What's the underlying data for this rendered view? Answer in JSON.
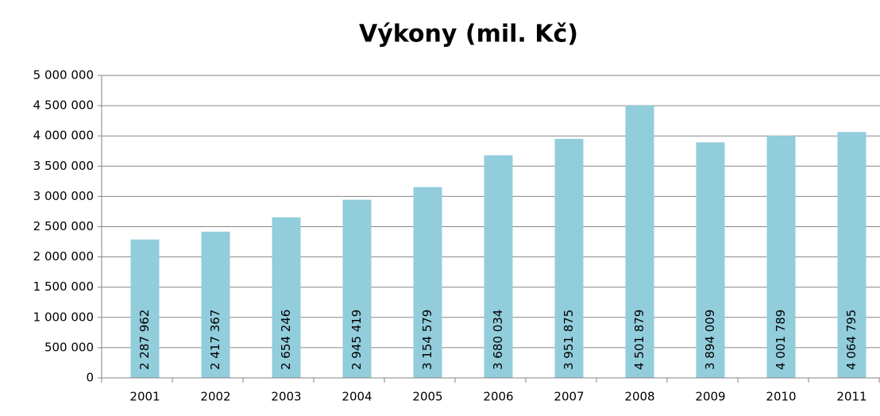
{
  "chart_data": {
    "type": "bar",
    "title": "Výkony (mil. Kč)",
    "categories": [
      "2001",
      "2002",
      "2003",
      "2004",
      "2005",
      "2006",
      "2007",
      "2008",
      "2009",
      "2010",
      "2011"
    ],
    "values": [
      2287962,
      2417367,
      2654246,
      2945419,
      3154579,
      3680034,
      3951875,
      4501879,
      3894009,
      4001789,
      4064795
    ],
    "value_labels": [
      "2 287 962",
      "2 417 367",
      "2 654 246",
      "2 945 419",
      "3 154 579",
      "3 680 034",
      "3 951 875",
      "4 501 879",
      "3 894 009",
      "4 001 789",
      "4 064 795"
    ],
    "color": "#92cddc",
    "ylim": [
      0,
      5000000
    ],
    "yticks": [
      0,
      {
        "value": 500000,
        "label": "500 000"
      },
      {
        "value": 1000000,
        "label": "1 000 000"
      },
      {
        "value": 1500000,
        "label": "1 500 000"
      },
      {
        "value": 2000000,
        "label": "2 000 000"
      },
      {
        "value": 2500000,
        "label": "2 500 000"
      },
      {
        "value": 3000000,
        "label": "3 000 000"
      },
      {
        "value": 3500000,
        "label": "3 500 000"
      },
      {
        "value": 4000000,
        "label": "4 000 000"
      },
      {
        "value": 4500000,
        "label": "4 500 000"
      },
      {
        "value": 5000000,
        "label": "5 000 000"
      }
    ],
    "grid": true
  }
}
